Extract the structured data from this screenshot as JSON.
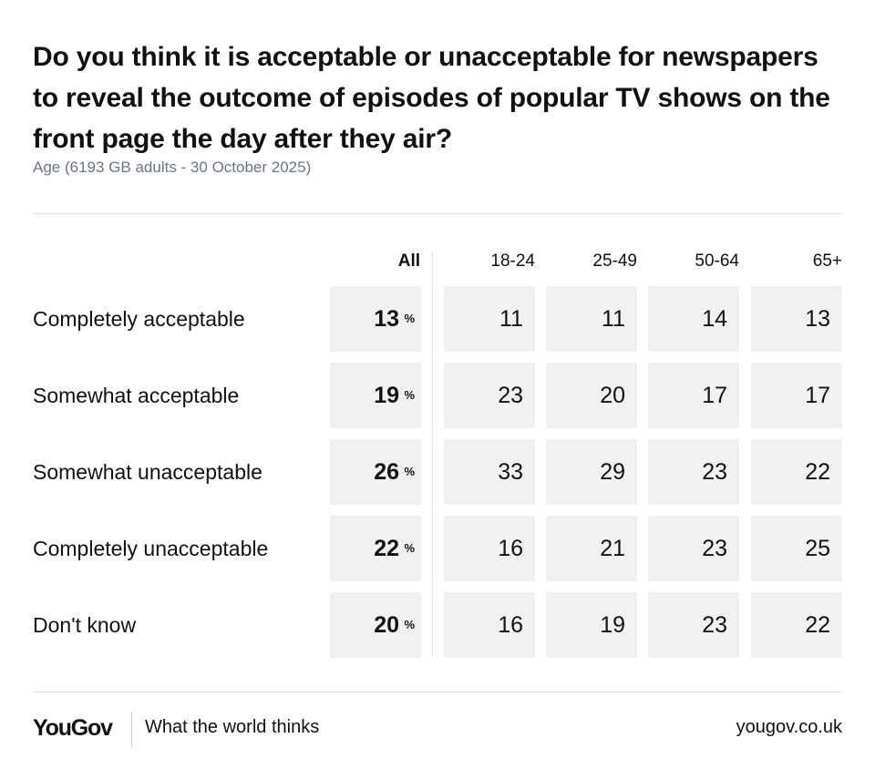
{
  "title": "Do you think it is acceptable or unacceptable for newspapers to reveal the outcome of episodes of popular TV shows on the front page the day after they air?",
  "subtitle": "Age (6193 GB adults - 30 October 2025)",
  "percent_symbol": "%",
  "chart_data": {
    "type": "table",
    "columns": [
      "All",
      "18-24",
      "25-49",
      "50-64",
      "65+"
    ],
    "rows": [
      {
        "label": "Completely acceptable",
        "values": [
          13,
          11,
          11,
          14,
          13
        ]
      },
      {
        "label": "Somewhat acceptable",
        "values": [
          19,
          23,
          20,
          17,
          17
        ]
      },
      {
        "label": "Somewhat unacceptable",
        "values": [
          26,
          33,
          29,
          23,
          22
        ]
      },
      {
        "label": "Completely unacceptable",
        "values": [
          22,
          16,
          21,
          23,
          25
        ]
      },
      {
        "label": "Don't know",
        "values": [
          20,
          16,
          19,
          23,
          22
        ]
      }
    ]
  },
  "footer": {
    "logo": "YouGov",
    "tagline": "What the world thinks",
    "url": "yougov.co.uk"
  },
  "colors": {
    "cell_background": "#f1f1f2",
    "subtitle": "#6c7686",
    "text": "#111111"
  }
}
